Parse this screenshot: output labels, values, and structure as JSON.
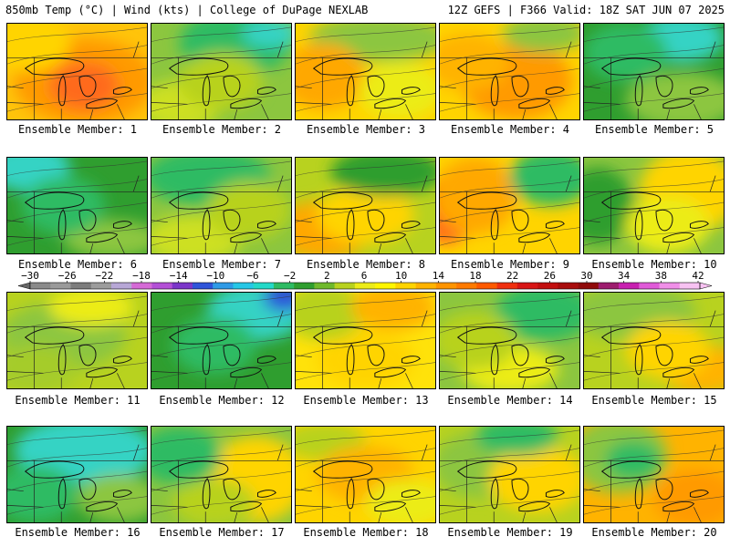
{
  "header": {
    "left": "850mb Temp (°C) | Wind (kts) | College of DuPage NEXLAB",
    "right": "12Z GEFS | F366 Valid: 18Z SAT JUN 07 2025"
  },
  "colorbar": {
    "ticks": [
      -30,
      -26,
      -22,
      -18,
      -14,
      -10,
      -6,
      -2,
      2,
      6,
      10,
      14,
      18,
      22,
      26,
      30,
      34,
      38,
      42
    ],
    "colors": [
      "#8a8a8a",
      "#9a9a9a",
      "#7c7c7c",
      "#9c9c9c",
      "#b7a7d6",
      "#d56ad6",
      "#b34fd6",
      "#7b36c9",
      "#2f54d9",
      "#2f9ae6",
      "#26c7e6",
      "#23d9c8",
      "#2dbb63",
      "#2f9e2f",
      "#6fb92c",
      "#b8d21f",
      "#ecec19",
      "#fff600",
      "#ffd400",
      "#ffb300",
      "#ff9400",
      "#ff7a00",
      "#ff5a00",
      "#f03010",
      "#d81616",
      "#c20f0f",
      "#a80c0c",
      "#8f0a0a",
      "#9d1c6e",
      "#c81fb0",
      "#e05ad8",
      "#f08fe8",
      "#f7c2f2"
    ]
  },
  "members": [
    {
      "label": "Ensemble Member: 1",
      "base": "#ffc40a",
      "blobs": [
        [
          "#ff9a00",
          0.55,
          0.6,
          0.5,
          0.45
        ],
        [
          "#ff6a1a",
          0.55,
          0.65,
          0.25,
          0.25
        ],
        [
          "#ffd400",
          0.15,
          0.2,
          0.3,
          0.3
        ]
      ]
    },
    {
      "label": "Ensemble Member: 2",
      "base": "#8cc63f",
      "blobs": [
        [
          "#2dbb63",
          0.6,
          0.2,
          0.4,
          0.35
        ],
        [
          "#34d3c4",
          0.85,
          0.1,
          0.2,
          0.15
        ],
        [
          "#cde020",
          0.2,
          0.85,
          0.3,
          0.25
        ],
        [
          "#b8d21f",
          0.5,
          0.6,
          0.3,
          0.3
        ]
      ]
    },
    {
      "label": "Ensemble Member: 3",
      "base": "#ffd400",
      "blobs": [
        [
          "#8cc63f",
          0.6,
          0.15,
          0.5,
          0.25
        ],
        [
          "#ffa800",
          0.2,
          0.55,
          0.3,
          0.35
        ],
        [
          "#ecec19",
          0.75,
          0.7,
          0.3,
          0.3
        ]
      ]
    },
    {
      "label": "Ensemble Member: 4",
      "base": "#ffd400",
      "blobs": [
        [
          "#ff9a00",
          0.55,
          0.6,
          0.4,
          0.4
        ],
        [
          "#8cc63f",
          0.75,
          0.1,
          0.3,
          0.2
        ],
        [
          "#ffb300",
          0.2,
          0.4,
          0.3,
          0.3
        ]
      ]
    },
    {
      "label": "Ensemble Member: 5",
      "base": "#2f9e2f",
      "blobs": [
        [
          "#34d3c4",
          0.7,
          0.15,
          0.3,
          0.25
        ],
        [
          "#8cc63f",
          0.7,
          0.8,
          0.4,
          0.3
        ],
        [
          "#2dbb63",
          0.3,
          0.3,
          0.3,
          0.3
        ]
      ]
    },
    {
      "label": "Ensemble Member: 6",
      "base": "#2f9e2f",
      "blobs": [
        [
          "#34d3c4",
          0.15,
          0.1,
          0.3,
          0.25
        ],
        [
          "#8cc63f",
          0.75,
          0.85,
          0.35,
          0.2
        ],
        [
          "#2dbb63",
          0.4,
          0.5,
          0.3,
          0.3
        ]
      ]
    },
    {
      "label": "Ensemble Member: 7",
      "base": "#8cc63f",
      "blobs": [
        [
          "#2dbb63",
          0.4,
          0.2,
          0.45,
          0.3
        ],
        [
          "#cde020",
          0.3,
          0.85,
          0.35,
          0.25
        ],
        [
          "#b8d21f",
          0.7,
          0.55,
          0.3,
          0.3
        ]
      ]
    },
    {
      "label": "Ensemble Member: 8",
      "base": "#b8d21f",
      "blobs": [
        [
          "#ffa800",
          0.2,
          0.75,
          0.35,
          0.3
        ],
        [
          "#ffd400",
          0.5,
          0.6,
          0.35,
          0.3
        ],
        [
          "#2f9e2f",
          0.65,
          0.15,
          0.4,
          0.25
        ]
      ]
    },
    {
      "label": "Ensemble Member: 9",
      "base": "#ffd400",
      "blobs": [
        [
          "#ff6a1a",
          0.05,
          0.55,
          0.2,
          0.35
        ],
        [
          "#ffa800",
          0.25,
          0.4,
          0.3,
          0.4
        ],
        [
          "#2dbb63",
          0.8,
          0.2,
          0.3,
          0.3
        ]
      ]
    },
    {
      "label": "Ensemble Member: 10",
      "base": "#8cc63f",
      "blobs": [
        [
          "#ffd400",
          0.75,
          0.35,
          0.35,
          0.45
        ],
        [
          "#2f9e2f",
          0.1,
          0.5,
          0.25,
          0.4
        ],
        [
          "#ecec19",
          0.6,
          0.7,
          0.3,
          0.3
        ]
      ]
    },
    {
      "label": "Ensemble Member: 11",
      "base": "#b8d21f",
      "blobs": [
        [
          "#8cc63f",
          0.4,
          0.45,
          0.45,
          0.35
        ],
        [
          "#ecec19",
          0.6,
          0.15,
          0.3,
          0.2
        ],
        [
          "#a5cc2a",
          0.2,
          0.8,
          0.3,
          0.25
        ]
      ]
    },
    {
      "label": "Ensemble Member: 12",
      "base": "#2f9e2f",
      "blobs": [
        [
          "#34d3c4",
          0.75,
          0.2,
          0.35,
          0.3
        ],
        [
          "#2f54d9",
          0.95,
          0.05,
          0.15,
          0.15
        ],
        [
          "#2dbb63",
          0.45,
          0.55,
          0.3,
          0.3
        ]
      ]
    },
    {
      "label": "Ensemble Member: 13",
      "base": "#ffe20a",
      "blobs": [
        [
          "#ffd400",
          0.5,
          0.7,
          0.35,
          0.3
        ],
        [
          "#b8d21f",
          0.2,
          0.2,
          0.3,
          0.3
        ],
        [
          "#ffb300",
          0.7,
          0.15,
          0.3,
          0.25
        ]
      ]
    },
    {
      "label": "Ensemble Member: 14",
      "base": "#8cc63f",
      "blobs": [
        [
          "#2dbb63",
          0.75,
          0.2,
          0.35,
          0.3
        ],
        [
          "#ecec19",
          0.5,
          0.8,
          0.35,
          0.25
        ],
        [
          "#b8d21f",
          0.25,
          0.5,
          0.3,
          0.3
        ]
      ]
    },
    {
      "label": "Ensemble Member: 15",
      "base": "#b8d21f",
      "blobs": [
        [
          "#ffb300",
          0.85,
          0.8,
          0.3,
          0.25
        ],
        [
          "#8cc63f",
          0.35,
          0.2,
          0.45,
          0.3
        ],
        [
          "#ffd400",
          0.6,
          0.6,
          0.3,
          0.3
        ]
      ]
    },
    {
      "label": "Ensemble Member: 16",
      "base": "#2f9e2f",
      "blobs": [
        [
          "#34d3c4",
          0.55,
          0.25,
          0.5,
          0.35
        ],
        [
          "#2dbb63",
          0.2,
          0.7,
          0.3,
          0.3
        ],
        [
          "#8cc63f",
          0.8,
          0.75,
          0.3,
          0.25
        ]
      ]
    },
    {
      "label": "Ensemble Member: 17",
      "base": "#8cc63f",
      "blobs": [
        [
          "#ffd400",
          0.75,
          0.55,
          0.35,
          0.45
        ],
        [
          "#2dbb63",
          0.2,
          0.3,
          0.3,
          0.3
        ],
        [
          "#b8d21f",
          0.45,
          0.8,
          0.3,
          0.25
        ]
      ]
    },
    {
      "label": "Ensemble Member: 18",
      "base": "#ffd400",
      "blobs": [
        [
          "#b8d21f",
          0.2,
          0.15,
          0.3,
          0.2
        ],
        [
          "#ffb300",
          0.5,
          0.5,
          0.35,
          0.3
        ],
        [
          "#ecec19",
          0.8,
          0.8,
          0.3,
          0.25
        ]
      ]
    },
    {
      "label": "Ensemble Member: 19",
      "base": "#b8d21f",
      "blobs": [
        [
          "#8cc63f",
          0.3,
          0.4,
          0.35,
          0.35
        ],
        [
          "#ffd400",
          0.7,
          0.55,
          0.35,
          0.35
        ],
        [
          "#2dbb63",
          0.55,
          0.1,
          0.3,
          0.2
        ]
      ]
    },
    {
      "label": "Ensemble Member: 20",
      "base": "#ffb300",
      "blobs": [
        [
          "#8cc63f",
          0.25,
          0.3,
          0.35,
          0.4
        ],
        [
          "#2dbb63",
          0.35,
          0.35,
          0.2,
          0.2
        ],
        [
          "#ff9a00",
          0.8,
          0.75,
          0.3,
          0.3
        ]
      ]
    }
  ]
}
